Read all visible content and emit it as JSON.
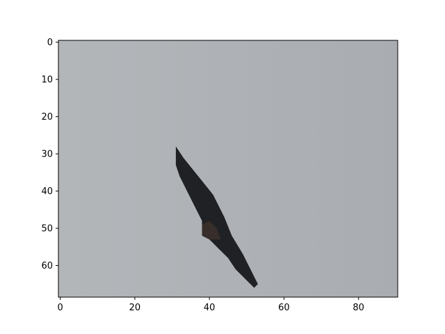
{
  "image_panel": {
    "background_color": "#b0b3b7",
    "object_color": "#1f2124",
    "frame_color": "#000000",
    "x_axis": {
      "range": [
        -0.5,
        90.5
      ],
      "ticks": [
        {
          "value": 0,
          "label": "0"
        },
        {
          "value": 20,
          "label": "20"
        },
        {
          "value": 40,
          "label": "40"
        },
        {
          "value": 60,
          "label": "60"
        },
        {
          "value": 80,
          "label": "80"
        }
      ]
    },
    "y_axis": {
      "range": [
        -0.5,
        68.5
      ],
      "inverted": true,
      "ticks": [
        {
          "value": 0,
          "label": "0"
        },
        {
          "value": 10,
          "label": "10"
        },
        {
          "value": 20,
          "label": "20"
        },
        {
          "value": 30,
          "label": "30"
        },
        {
          "value": 40,
          "label": "40"
        },
        {
          "value": 50,
          "label": "50"
        },
        {
          "value": 60,
          "label": "60"
        }
      ]
    },
    "depicted_object": {
      "name": "dark-bird-silhouette",
      "outline_pixels": [
        [
          31,
          28
        ],
        [
          33,
          31
        ],
        [
          37,
          36
        ],
        [
          41,
          41
        ],
        [
          44,
          47
        ],
        [
          46,
          52
        ],
        [
          49,
          57
        ],
        [
          51,
          61
        ],
        [
          53,
          65
        ],
        [
          52,
          66
        ],
        [
          49,
          63
        ],
        [
          47,
          61
        ],
        [
          45,
          58
        ],
        [
          43,
          56
        ],
        [
          40,
          53
        ],
        [
          38,
          52
        ],
        [
          38,
          48
        ],
        [
          36,
          44
        ],
        [
          34,
          40
        ],
        [
          32,
          36
        ],
        [
          31,
          33
        ],
        [
          31,
          29
        ]
      ]
    }
  }
}
